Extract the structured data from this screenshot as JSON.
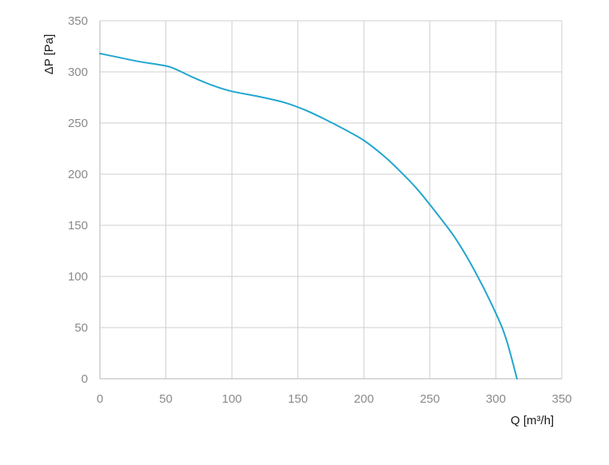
{
  "chart_data": {
    "type": "line",
    "title": "",
    "xlabel": "Q [m³/h]",
    "ylabel": "ΔP [Pa]",
    "xlim": [
      0,
      350
    ],
    "ylim": [
      0,
      350
    ],
    "x_ticks": [
      0,
      50,
      100,
      150,
      200,
      250,
      300,
      350
    ],
    "y_ticks": [
      0,
      50,
      100,
      150,
      200,
      250,
      300,
      350
    ],
    "grid": true,
    "colors": {
      "line": "#22a6cf",
      "grid": "#cfcfcf",
      "axis": "#b5b5b5"
    },
    "series": [
      {
        "x": [
          0,
          15,
          30,
          45,
          55,
          70,
          85,
          100,
          120,
          140,
          155,
          170,
          185,
          200,
          215,
          225,
          240,
          255,
          270,
          285,
          300,
          308,
          316
        ],
        "y": [
          318,
          314,
          310,
          307,
          304,
          295,
          287,
          281,
          276,
          270,
          263,
          254,
          244,
          233,
          218,
          206,
          186,
          162,
          136,
          103,
          64,
          38,
          0
        ]
      }
    ]
  }
}
